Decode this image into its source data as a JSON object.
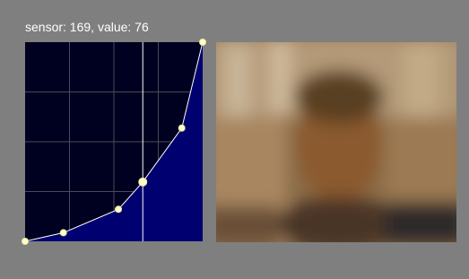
{
  "curve_editor": {
    "label": "sensor: 169, value: 76",
    "sensor_range": [
      0,
      255
    ],
    "value_range": [
      0,
      255
    ],
    "selected_point": 3,
    "points": [
      {
        "sensor": 0,
        "value": 0
      },
      {
        "sensor": 55,
        "value": 11
      },
      {
        "sensor": 134,
        "value": 41
      },
      {
        "sensor": 169,
        "value": 76
      },
      {
        "sensor": 225,
        "value": 145
      },
      {
        "sensor": 255,
        "value": 255
      }
    ]
  }
}
